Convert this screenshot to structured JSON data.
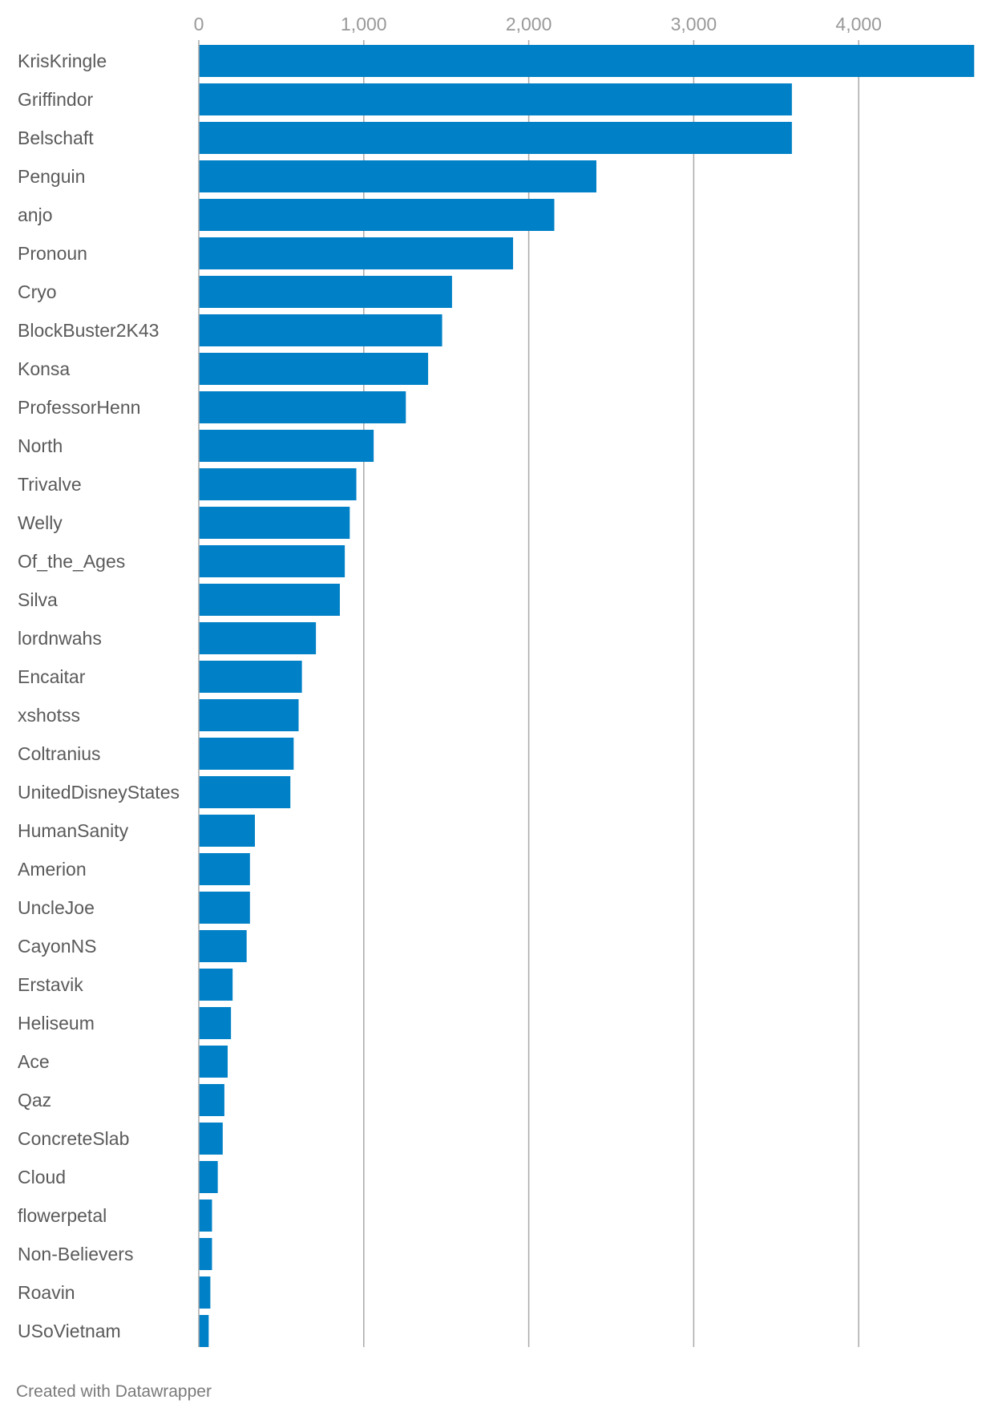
{
  "colors": {
    "bar": "#0080c6",
    "grid": "#a9a9a9",
    "label": "#5a5a5a",
    "tick": "#999999"
  },
  "footer": {
    "credit": "Created with Datawrapper"
  },
  "chart_data": {
    "type": "bar",
    "orientation": "horizontal",
    "title": "",
    "xlabel": "",
    "ylabel": "",
    "xlim": [
      0,
      4700
    ],
    "grid": true,
    "ticks": [
      {
        "value": 0,
        "label": "0"
      },
      {
        "value": 1000,
        "label": "1,000"
      },
      {
        "value": 2000,
        "label": "2,000"
      },
      {
        "value": 3000,
        "label": "3,000"
      },
      {
        "value": 4000,
        "label": "4,000"
      }
    ],
    "categories": [
      "KrisKringle",
      "Griffindor",
      "Belschaft",
      "Penguin",
      "anjo",
      "Pronoun",
      "Cryo",
      "BlockBuster2K43",
      "Konsa",
      "ProfessorHenn",
      "North",
      "Trivalve",
      "Welly",
      "Of_the_Ages",
      "Silva",
      "lordnwahs",
      "Encaitar",
      "xshotss",
      "Coltranius",
      "UnitedDisneyStates",
      "HumanSanity",
      "Amerion",
      "UncleJoe",
      "CayonNS",
      "Erstavik",
      "Heliseum",
      "Ace",
      "Qaz",
      "ConcreteSlab",
      "Cloud",
      "flowerpetal",
      "Non-Believers",
      "Roavin",
      "USoVietnam"
    ],
    "values": [
      4700,
      3595,
      3595,
      2410,
      2155,
      1905,
      1535,
      1475,
      1390,
      1255,
      1060,
      955,
      915,
      885,
      855,
      710,
      625,
      605,
      575,
      555,
      340,
      310,
      310,
      290,
      205,
      195,
      175,
      155,
      145,
      115,
      80,
      80,
      70,
      60
    ]
  }
}
